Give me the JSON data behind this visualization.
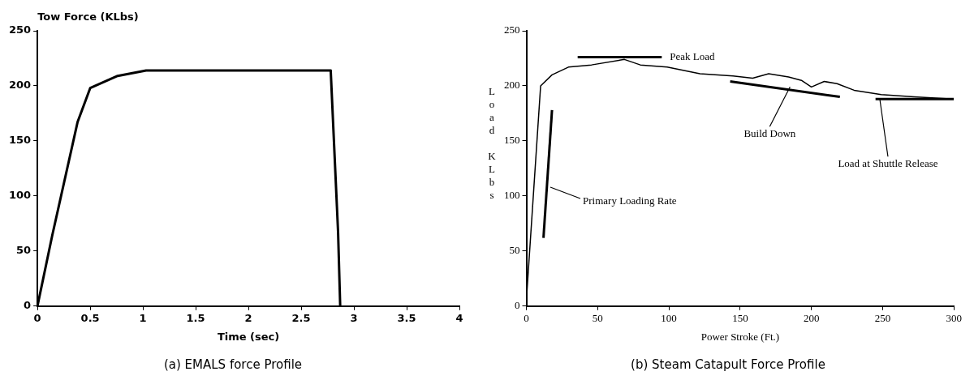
{
  "chart_data": [
    {
      "type": "line",
      "title": "(a) EMALS force Profile",
      "xlabel": "Time (sec)",
      "ylabel": "Tow Force (KLbs)",
      "xlim": [
        0,
        4
      ],
      "xticks": [
        0,
        0.5,
        1,
        1.5,
        2,
        2.5,
        3,
        3.5,
        4
      ],
      "ylim": [
        0,
        250
      ],
      "yticks": [
        0,
        50,
        100,
        150,
        200,
        250
      ],
      "grid": false,
      "legend": false,
      "marker": "none",
      "line_style": "solid",
      "series": [
        {
          "color": "#000000",
          "x": [
            0,
            0.14,
            0.38,
            0.5,
            0.76,
            1.03,
            2.78,
            2.85,
            2.87
          ],
          "values": [
            0,
            64,
            167,
            198,
            209,
            214,
            214,
            67,
            0
          ]
        }
      ]
    },
    {
      "type": "line",
      "title": "(b) Steam Catapult Force Profile",
      "xlabel": "Power Stroke (Ft.)",
      "ylabel": "Load KLbs",
      "xlim": [
        0,
        300
      ],
      "xticks": [
        0,
        50,
        100,
        150,
        200,
        250,
        300
      ],
      "ylim": [
        0,
        250
      ],
      "yticks": [
        0,
        50,
        100,
        150,
        200,
        250
      ],
      "grid": false,
      "legend": false,
      "marker": "none",
      "line_style": "solid",
      "series": [
        {
          "color": "#000000",
          "x": [
            0,
            10,
            18,
            29.5,
            45.7,
            68.8,
            80,
            98.8,
            121.8,
            145,
            158.8,
            170,
            184,
            193,
            200,
            209,
            218,
            230,
            249,
            272,
            299.5
          ],
          "values": [
            5,
            200,
            210,
            217,
            219,
            224,
            219,
            217,
            211,
            209,
            207,
            211,
            208,
            205,
            199,
            204,
            202,
            196,
            192,
            190,
            188
          ]
        },
        {
          "color": "#000000",
          "x": [
            12,
            18
          ],
          "values": [
            62,
            178
          ]
        },
        {
          "color": "#000000",
          "x": [
            36,
            95
          ],
          "values": [
            226,
            226
          ]
        },
        {
          "color": "#000000",
          "x": [
            143,
            220
          ],
          "values": [
            204,
            190
          ]
        },
        {
          "color": "#000000",
          "x": [
            245,
            300
          ],
          "values": [
            188,
            188
          ]
        }
      ],
      "annotations": [
        {
          "text": "Primary Loading Rate",
          "x": 16.8,
          "y": 108
        },
        {
          "text": "Peak Load",
          "x": 95,
          "y": 226
        },
        {
          "text": "Build Down",
          "x": 185,
          "y": 199
        },
        {
          "text": "Load at Shuttle Release",
          "x": 248,
          "y": 188
        }
      ]
    }
  ]
}
